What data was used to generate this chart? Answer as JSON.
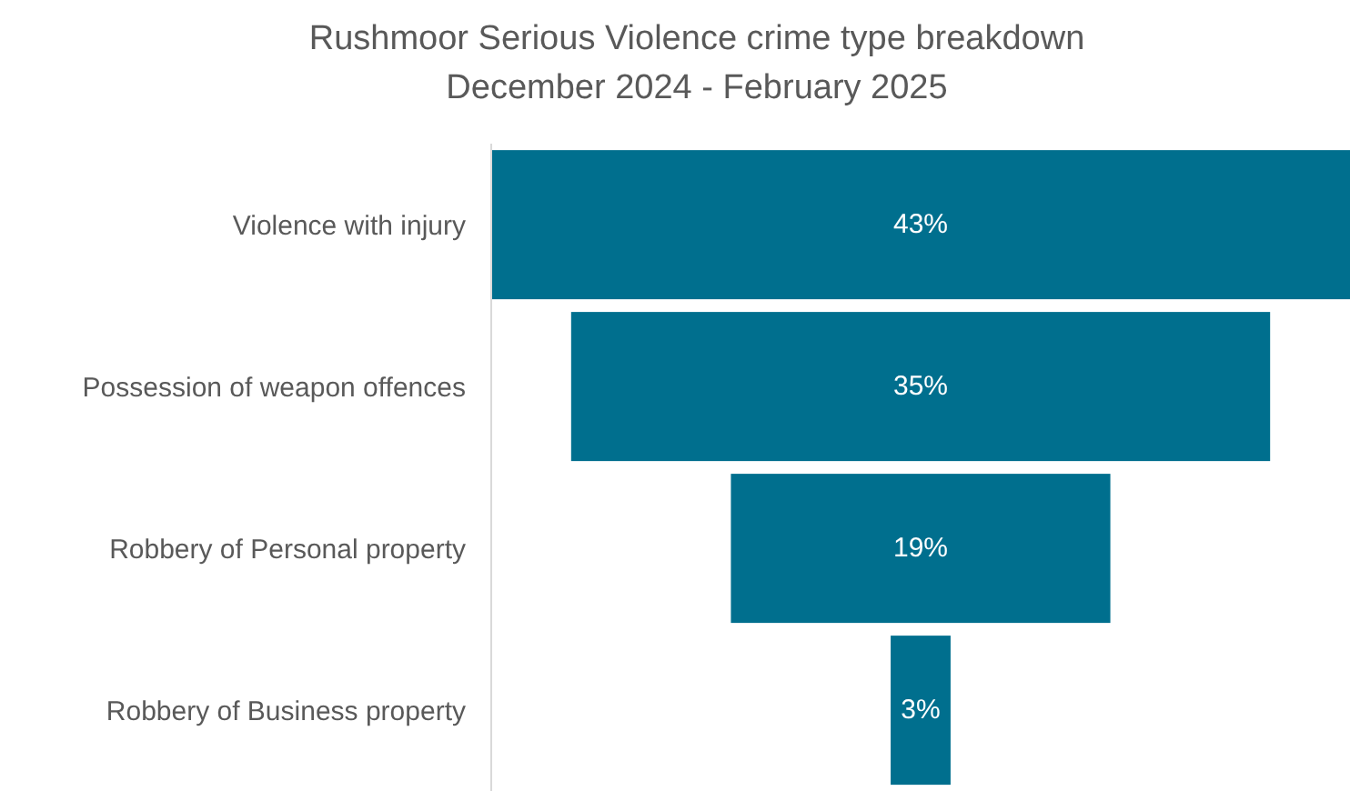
{
  "chart_data": {
    "type": "other",
    "title": "Rushmoor Serious Violence crime type breakdown",
    "subtitle": "December 2024 - February 2025",
    "categories": [
      "Violence with injury",
      "Possession of weapon offences",
      "Robbery of Personal property",
      "Robbery of Business property"
    ],
    "values": [
      43,
      35,
      19,
      3
    ],
    "value_labels": [
      "43%",
      "35%",
      "19%",
      "3%"
    ],
    "color": "#006f8e"
  }
}
